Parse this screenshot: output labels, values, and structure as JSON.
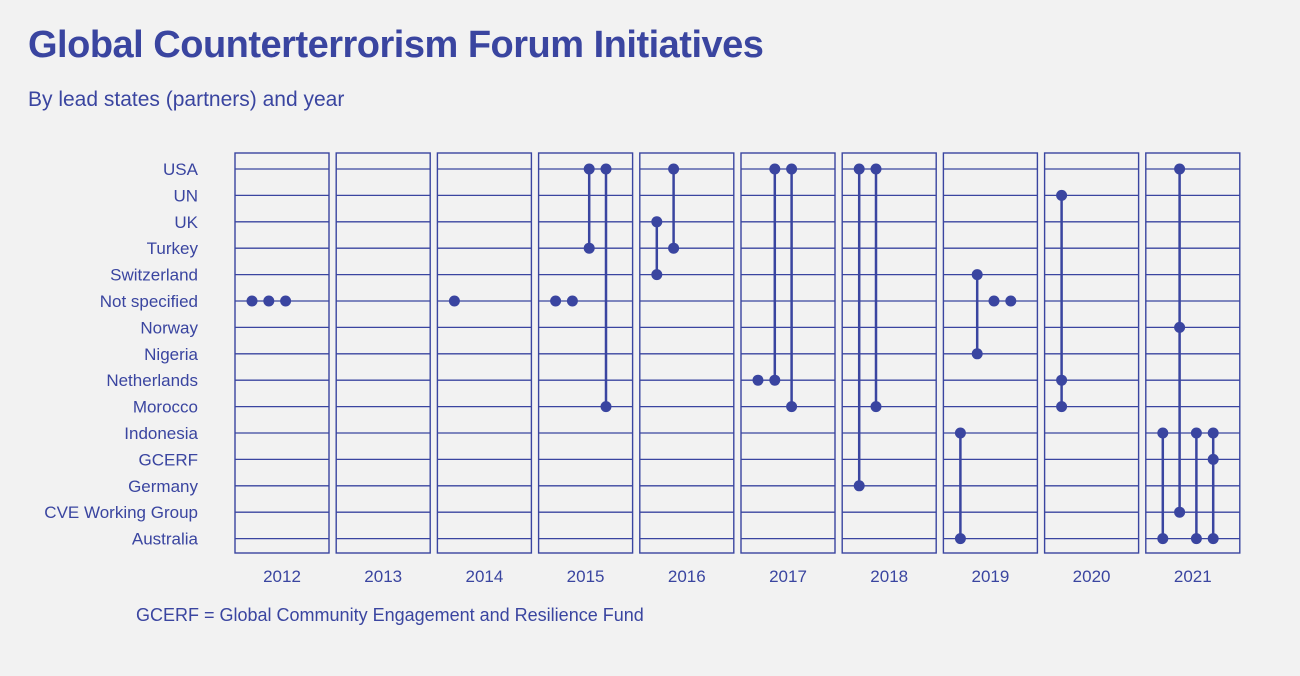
{
  "title": "Global Counterterrorism Forum Initiatives",
  "subtitle": "By lead states (partners) and year",
  "footnote": "GCERF = Global Community Engagement and Resilience Fund",
  "colors": {
    "accent": "#3a45a0",
    "background": "#f2f2f2"
  },
  "chart_data": {
    "type": "scatter",
    "title": "Global Counterterrorism Forum Initiatives",
    "subtitle": "By lead states (partners) and year",
    "years": [
      "2012",
      "2013",
      "2014",
      "2015",
      "2016",
      "2017",
      "2018",
      "2019",
      "2020",
      "2021"
    ],
    "categories": [
      "USA",
      "UN",
      "UK",
      "Turkey",
      "Switzerland",
      "Not specified",
      "Norway",
      "Nigeria",
      "Netherlands",
      "Morocco",
      "Indonesia",
      "GCERF",
      "Germany",
      "CVE Working Group",
      "Australia"
    ],
    "initiatives": [
      {
        "year": "2012",
        "partners": [
          "Not specified"
        ]
      },
      {
        "year": "2012",
        "partners": [
          "Not specified"
        ]
      },
      {
        "year": "2012",
        "partners": [
          "Not specified"
        ]
      },
      {
        "year": "2014",
        "partners": [
          "Not specified"
        ]
      },
      {
        "year": "2015",
        "partners": [
          "Not specified"
        ]
      },
      {
        "year": "2015",
        "partners": [
          "Not specified"
        ]
      },
      {
        "year": "2015",
        "partners": [
          "USA",
          "Turkey"
        ]
      },
      {
        "year": "2015",
        "partners": [
          "USA",
          "Morocco"
        ]
      },
      {
        "year": "2016",
        "partners": [
          "UK",
          "Switzerland"
        ]
      },
      {
        "year": "2016",
        "partners": [
          "USA",
          "Turkey"
        ]
      },
      {
        "year": "2017",
        "partners": [
          "Netherlands"
        ]
      },
      {
        "year": "2017",
        "partners": [
          "USA",
          "Netherlands"
        ]
      },
      {
        "year": "2017",
        "partners": [
          "USA",
          "Morocco"
        ]
      },
      {
        "year": "2018",
        "partners": [
          "USA",
          "Germany"
        ]
      },
      {
        "year": "2018",
        "partners": [
          "USA",
          "Morocco"
        ]
      },
      {
        "year": "2019",
        "partners": [
          "Indonesia",
          "Australia"
        ]
      },
      {
        "year": "2019",
        "partners": [
          "Switzerland",
          "Nigeria"
        ]
      },
      {
        "year": "2019",
        "partners": [
          "Not specified"
        ]
      },
      {
        "year": "2019",
        "partners": [
          "Not specified"
        ]
      },
      {
        "year": "2020",
        "partners": [
          "UN",
          "Netherlands",
          "Morocco"
        ]
      },
      {
        "year": "2021",
        "partners": [
          "Indonesia",
          "Australia"
        ]
      },
      {
        "year": "2021",
        "partners": [
          "USA",
          "Norway",
          "CVE Working Group"
        ]
      },
      {
        "year": "2021",
        "partners": [
          "Indonesia",
          "Australia"
        ]
      },
      {
        "year": "2021",
        "partners": [
          "Indonesia",
          "GCERF",
          "Australia"
        ]
      }
    ]
  }
}
